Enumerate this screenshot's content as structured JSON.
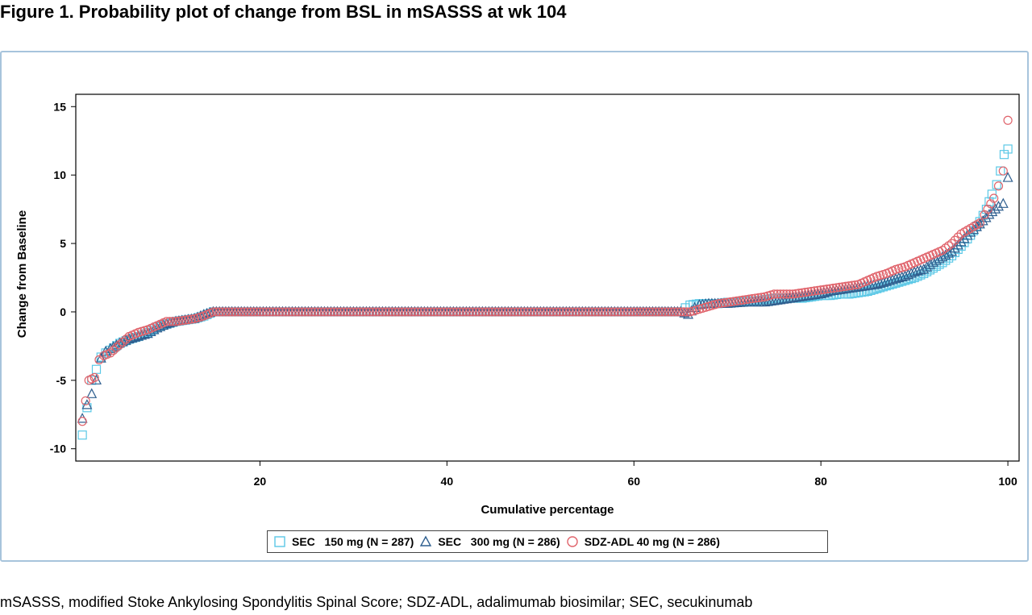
{
  "figure": {
    "title": "Figure 1. Probability plot of change from BSL in mSASSS at wk 104",
    "footnote": "mSASSS, modified Stoke Ankylosing Spondylitis Spinal Score; SDZ-ADL, adalimumab biosimilar; SEC, secukinumab"
  },
  "colors": {
    "sec150": "#5bc8e6",
    "sec300": "#2f5f8f",
    "sdz": "#e0636b",
    "frame": "#a7c4dc"
  },
  "chart_data": {
    "type": "scatter",
    "xlabel": "Cumulative percentage",
    "ylabel": "Change from Baseline",
    "xlim": [
      0.3,
      101.2
    ],
    "ylim": [
      -10.9,
      15.9
    ],
    "xticks": [
      20,
      40,
      60,
      80,
      100
    ],
    "yticks": [
      -10,
      -5,
      0,
      5,
      10,
      15
    ],
    "grid": false,
    "legend_position": "bottom",
    "series": [
      {
        "name": "SEC 150 mg (N = 287)",
        "n_label": "SEC   150 mg (N = 287)",
        "marker": "square",
        "points": [
          [
            1,
            -9
          ],
          [
            1.5,
            -7
          ],
          [
            2,
            -5
          ],
          [
            2.5,
            -4.2
          ],
          [
            3,
            -3.3
          ],
          [
            3.5,
            -3
          ],
          [
            4,
            -2.8
          ],
          [
            5,
            -2.3
          ],
          [
            6,
            -2
          ],
          [
            7,
            -1.8
          ],
          [
            8,
            -1.5
          ],
          [
            9,
            -1.1
          ],
          [
            10,
            -0.9
          ],
          [
            11,
            -0.7
          ],
          [
            12,
            -0.6
          ],
          [
            13,
            -0.5
          ],
          [
            14,
            -0.3
          ],
          [
            15,
            0
          ],
          [
            20,
            0
          ],
          [
            30,
            0
          ],
          [
            40,
            0
          ],
          [
            50,
            0
          ],
          [
            60,
            0
          ],
          [
            65,
            0
          ],
          [
            65.5,
            0.3
          ],
          [
            66,
            0.5
          ],
          [
            67,
            0.6
          ],
          [
            68,
            0.6
          ],
          [
            69,
            0.6
          ],
          [
            70,
            0.7
          ],
          [
            71,
            0.7
          ],
          [
            72,
            0.8
          ],
          [
            73,
            0.8
          ],
          [
            74,
            0.9
          ],
          [
            75,
            1
          ],
          [
            76,
            1
          ],
          [
            77,
            1
          ],
          [
            78,
            1
          ],
          [
            79,
            1.1
          ],
          [
            80,
            1.2
          ],
          [
            81,
            1.2
          ],
          [
            82,
            1.3
          ],
          [
            83,
            1.3
          ],
          [
            84,
            1.4
          ],
          [
            85,
            1.5
          ],
          [
            86,
            1.7
          ],
          [
            87,
            1.9
          ],
          [
            88,
            2.1
          ],
          [
            89,
            2.3
          ],
          [
            90,
            2.5
          ],
          [
            91,
            2.8
          ],
          [
            92,
            3.2
          ],
          [
            93,
            3.6
          ],
          [
            94,
            4.1
          ],
          [
            95,
            4.8
          ],
          [
            96,
            5.6
          ],
          [
            97,
            6.6
          ],
          [
            97.7,
            7.5
          ],
          [
            98.3,
            8.6
          ],
          [
            98.8,
            9.3
          ],
          [
            99.2,
            10.3
          ],
          [
            99.6,
            11.5
          ],
          [
            100,
            11.9
          ]
        ]
      },
      {
        "name": "SEC 300 mg (N = 286)",
        "n_label": "SEC   300 mg (N = 286)",
        "marker": "triangle",
        "points": [
          [
            1,
            -7.8
          ],
          [
            1.5,
            -6.8
          ],
          [
            2,
            -6
          ],
          [
            2.5,
            -5
          ],
          [
            3,
            -3.4
          ],
          [
            3.5,
            -2.9
          ],
          [
            4,
            -2.7
          ],
          [
            5,
            -2.3
          ],
          [
            6,
            -2
          ],
          [
            7,
            -1.8
          ],
          [
            8,
            -1.6
          ],
          [
            9,
            -1.2
          ],
          [
            10,
            -0.9
          ],
          [
            11,
            -0.7
          ],
          [
            12,
            -0.6
          ],
          [
            13,
            -0.5
          ],
          [
            14,
            -0.2
          ],
          [
            15,
            0
          ],
          [
            20,
            0
          ],
          [
            30,
            0
          ],
          [
            40,
            0
          ],
          [
            50,
            0
          ],
          [
            60,
            0
          ],
          [
            65,
            0
          ],
          [
            65.8,
            -0.2
          ],
          [
            66.5,
            0.3
          ],
          [
            67,
            0.5
          ],
          [
            68,
            0.6
          ],
          [
            69,
            0.6
          ],
          [
            70,
            0.6
          ],
          [
            72,
            0.7
          ],
          [
            74,
            0.7
          ],
          [
            75,
            0.8
          ],
          [
            76,
            0.9
          ],
          [
            78,
            1.1
          ],
          [
            80,
            1.3
          ],
          [
            81,
            1.5
          ],
          [
            82,
            1.6
          ],
          [
            83,
            1.7
          ],
          [
            84,
            1.8
          ],
          [
            85,
            1.9
          ],
          [
            86,
            2
          ],
          [
            87,
            2.2
          ],
          [
            88,
            2.4
          ],
          [
            89,
            2.6
          ],
          [
            90,
            2.9
          ],
          [
            91,
            3.1
          ],
          [
            92,
            3.6
          ],
          [
            93,
            4
          ],
          [
            94,
            4.4
          ],
          [
            95,
            5.1
          ],
          [
            96,
            5.8
          ],
          [
            97,
            6.4
          ],
          [
            98,
            7.1
          ],
          [
            99,
            7.7
          ],
          [
            99.5,
            7.9
          ],
          [
            100,
            9.8
          ]
        ]
      },
      {
        "name": "SDZ-ADL 40 mg (N = 286)",
        "n_label": "SDZ-ADL 40 mg (N = 286)",
        "marker": "circle",
        "points": [
          [
            1,
            -8
          ],
          [
            1.7,
            -5
          ],
          [
            2.3,
            -4.8
          ],
          [
            2.8,
            -3.5
          ],
          [
            3.3,
            -3.2
          ],
          [
            4,
            -3
          ],
          [
            5,
            -2.4
          ],
          [
            6,
            -1.8
          ],
          [
            7,
            -1.5
          ],
          [
            8,
            -1.3
          ],
          [
            9,
            -1
          ],
          [
            10,
            -0.7
          ],
          [
            11,
            -0.7
          ],
          [
            12,
            -0.6
          ],
          [
            13,
            -0.5
          ],
          [
            14,
            -0.3
          ],
          [
            15,
            0
          ],
          [
            20,
            0
          ],
          [
            30,
            0
          ],
          [
            40,
            0
          ],
          [
            50,
            0
          ],
          [
            60,
            0
          ],
          [
            66,
            0
          ],
          [
            67,
            0.2
          ],
          [
            68,
            0.4
          ],
          [
            69,
            0.6
          ],
          [
            70,
            0.7
          ],
          [
            71,
            0.8
          ],
          [
            72,
            0.9
          ],
          [
            73,
            1
          ],
          [
            74,
            1.1
          ],
          [
            75,
            1.3
          ],
          [
            76,
            1.3
          ],
          [
            77,
            1.3
          ],
          [
            78,
            1.4
          ],
          [
            79,
            1.5
          ],
          [
            80,
            1.6
          ],
          [
            81,
            1.7
          ],
          [
            82,
            1.8
          ],
          [
            83,
            1.9
          ],
          [
            84,
            2
          ],
          [
            85,
            2.3
          ],
          [
            86,
            2.6
          ],
          [
            87,
            2.8
          ],
          [
            88,
            3.1
          ],
          [
            89,
            3.3
          ],
          [
            90,
            3.6
          ],
          [
            91,
            3.9
          ],
          [
            92,
            4.2
          ],
          [
            93,
            4.5
          ],
          [
            94,
            5
          ],
          [
            95,
            5.7
          ],
          [
            96,
            6.1
          ],
          [
            97,
            6.5
          ],
          [
            97.5,
            7.1
          ],
          [
            98.5,
            8.3
          ],
          [
            99,
            9.2
          ],
          [
            99.5,
            10.3
          ],
          [
            100,
            14
          ]
        ]
      }
    ]
  }
}
